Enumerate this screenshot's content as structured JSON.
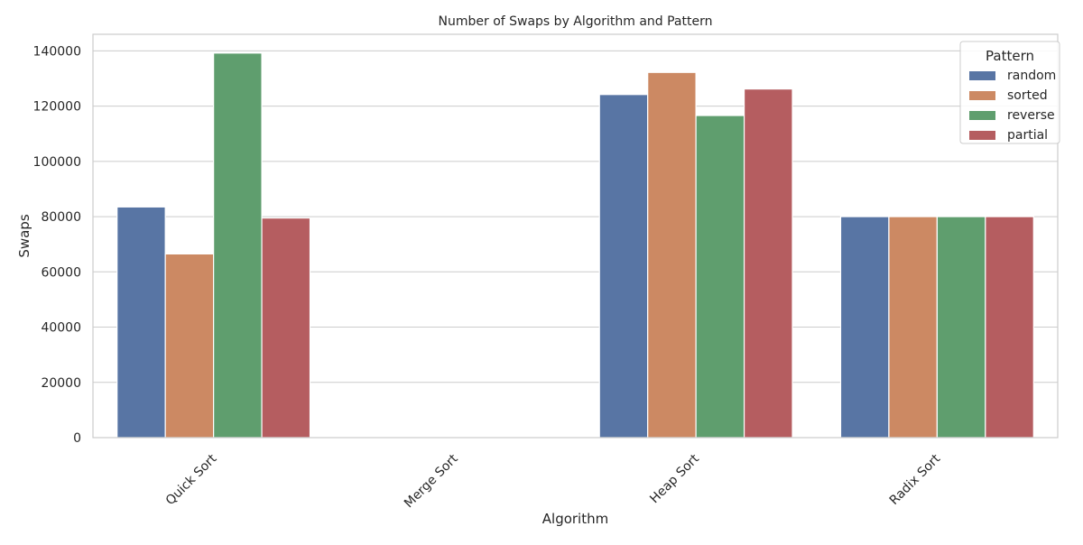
{
  "chart_data": {
    "type": "bar",
    "title": "Number of Swaps by Algorithm and Pattern",
    "xlabel": "Algorithm",
    "ylabel": "Swaps",
    "categories": [
      "Quick Sort",
      "Merge Sort",
      "Heap Sort",
      "Radix Sort"
    ],
    "ylim": [
      0,
      146000
    ],
    "yticks": [
      0,
      20000,
      40000,
      60000,
      80000,
      100000,
      120000,
      140000
    ],
    "grid": true,
    "legend": {
      "title": "Pattern",
      "placement": "top-right"
    },
    "series": [
      {
        "name": "random",
        "color": "#5875a4",
        "values": [
          83500,
          0,
          124200,
          80000
        ]
      },
      {
        "name": "sorted",
        "color": "#cc8963",
        "values": [
          66500,
          0,
          132200,
          80000
        ]
      },
      {
        "name": "reverse",
        "color": "#5f9e6e",
        "values": [
          139200,
          0,
          116600,
          80000
        ]
      },
      {
        "name": "partial",
        "color": "#b55d60",
        "values": [
          79500,
          0,
          126200,
          80000
        ]
      }
    ]
  }
}
